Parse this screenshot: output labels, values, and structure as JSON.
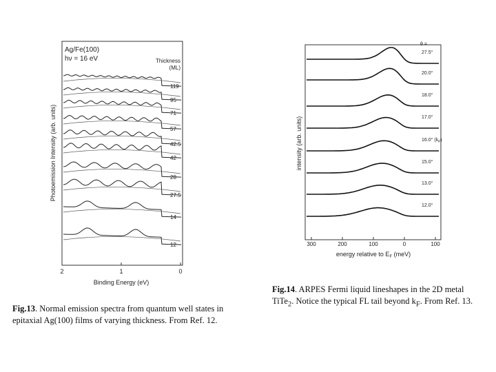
{
  "figures": [
    {
      "panel_title": [
        "Ag/Fe(100)",
        "hν = 16 eV"
      ],
      "legend_title": [
        "Thickness",
        "(ML)"
      ],
      "curve_labels": [
        "119",
        "95",
        "71",
        "57",
        "42.5",
        "42",
        "28",
        "27.5",
        "14",
        "12"
      ],
      "y_label": "Photoemission Intensity (arb. units)",
      "x_label": "Binding Energy (eV)",
      "x_ticks": [
        "2",
        "1",
        "0"
      ],
      "caption": {
        "label": "Fig.13",
        "text": ". Normal emission spectra from quantum well states in epitaxial Ag(100) films of varying thickness. From Ref. 12."
      }
    },
    {
      "legend_title": "θ =",
      "curve_labels": [
        "27.5°",
        "20.0°",
        "18.0°",
        "17.0°",
        "16.0° (k",
        "15.0°",
        "13.0°",
        "12.0°"
      ],
      "curve_label_sub": "F",
      "curve_label_end": ")",
      "y_label": "intensity (arb. units)",
      "x_label": "energy relative to E",
      "x_label_sub": "F",
      "x_label_end": " (meV)",
      "x_ticks": [
        "300",
        "200",
        "100",
        "0",
        "100"
      ],
      "caption": {
        "label": "Fig.14",
        "text": ". ARPES Fermi liquid lineshapes in the 2D metal TiTe",
        "sub": "2",
        "text2": ". Notice the typical FL tail beyond k",
        "sub2": "F",
        "text3": ". From Ref. 13."
      }
    }
  ]
}
